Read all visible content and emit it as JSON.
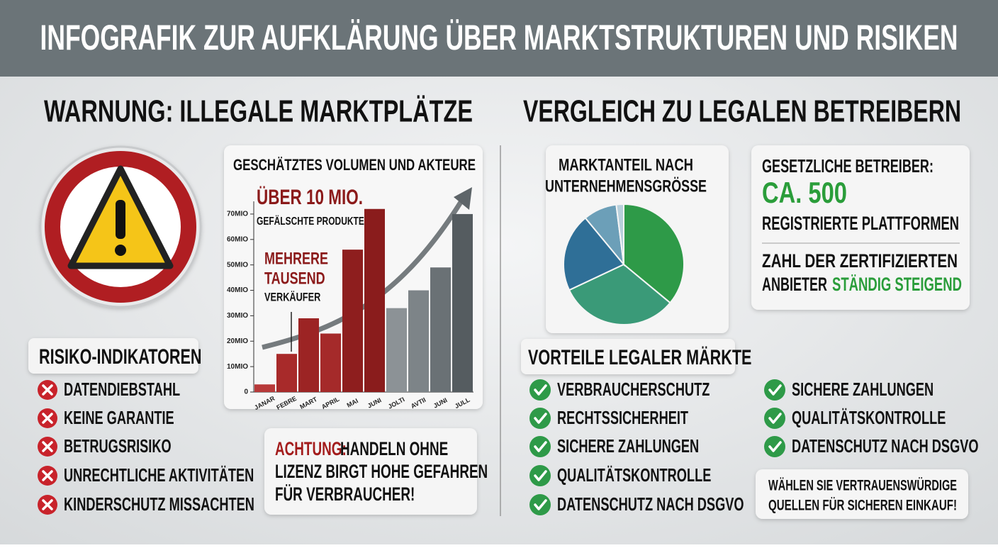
{
  "header": {
    "title": "INFOGRAFIK ZUR AUFKLÄRUNG ÜBER MARKTSTRUKTUREN UND RISIKEN"
  },
  "left": {
    "heading": "WARNUNG: ILLEGALE MARKTPLÄTZE",
    "risk_title": "RISIKO-INDIKATOREN",
    "risks": [
      "DATENDIEBSTAHL",
      "KEINE GARANTIE",
      "BETRUGSRISIKO",
      "UNRECHTLICHE AKTIVITÄTEN",
      "KINDERSCHUTZ MISSACHTEN"
    ],
    "warning": {
      "label": "ACHTUNG:",
      "lines": [
        "HANDELN OHNE",
        "LIZENZ BIRGT HOHE GEFAHREN",
        "FÜR VERBRAUCHER!"
      ]
    }
  },
  "right": {
    "heading": "VERGLEICH ZU LEGALEN BETREIBERN",
    "operators": {
      "title": "GESETZLICHE BETREIBER:",
      "count": "CA. 500",
      "count_label": "REGISTRIERTE PLATTFORMEN",
      "certified_lines": [
        "ZAHL DER ZERTIFIZIERTEN",
        "ANBIETER"
      ],
      "certified_trend": "STÄNDIG STEIGEND"
    },
    "benefits_title": "VORTEILE LEGALER MÄRKTE",
    "benefits": [
      "VERBRAUCHERSCHUTZ",
      "RECHTSSICHERHEIT",
      "SICHERE ZAHLUNGEN",
      "QUALITÄTSKONTROLLE",
      "DATENSCHUTZ NACH DSGVO"
    ],
    "benefits_extra": [
      "SICHERE ZAHLUNGEN",
      "QUALITÄTSKONTROLLE",
      "DATENSCHUTZ NACH DSGVO"
    ],
    "advice": [
      "WÄHLEN SIE VERTRAUENSWÜRDIGE",
      "QUELLEN FÜR SICHEREN EINKAUF!"
    ]
  },
  "chart_data": [
    {
      "type": "area",
      "title": "GESCHÄTZTES VOLUMEN UND AKTEURE",
      "categories": [
        "JANAR",
        "FEBRE",
        "MART",
        "APRIL",
        "MAI",
        "JUNI",
        "JOLTI",
        "AVTII",
        "JUNI",
        "JULL"
      ],
      "values": [
        3,
        15,
        29,
        23,
        56,
        72,
        33,
        40,
        49,
        70
      ],
      "colors": [
        "#b83a3a",
        "#a82a2a",
        "#9c2424",
        "#a52a2a",
        "#8e1e1e",
        "#8a1c1c",
        "#8c9296",
        "#7d8488",
        "#6a7175",
        "#555c60"
      ],
      "ylim": [
        0,
        75
      ],
      "yticks": [
        0,
        {
          "value": 10,
          "label": "10MIO"
        },
        {
          "value": 20,
          "label": "20MIO"
        },
        {
          "value": 30,
          "label": "30MIO"
        },
        {
          "value": 40,
          "label": "40MIO"
        },
        {
          "value": 50,
          "label": "50MIO"
        },
        {
          "value": 60,
          "label": "60MIO"
        },
        {
          "value": 70,
          "label": "70MIO"
        }
      ],
      "annotations": [
        "ÜBER 10 MIO.",
        "GEFÄLSCHTE PRODUKTE",
        "MEHRERE",
        "TAUSEND",
        "VERKÄUFER"
      ]
    },
    {
      "type": "pie",
      "title": [
        "MARKTANTEIL NACH",
        "UNTERNEHMENSGRÖSSE"
      ],
      "categories": [
        null,
        null,
        null,
        null,
        null
      ],
      "values": [
        36,
        32,
        21,
        9,
        2
      ],
      "colors": [
        "#2e9a48",
        "#3a9a78",
        "#2f6f97",
        "#6c9fb8",
        "#b8d0dc"
      ]
    }
  ]
}
